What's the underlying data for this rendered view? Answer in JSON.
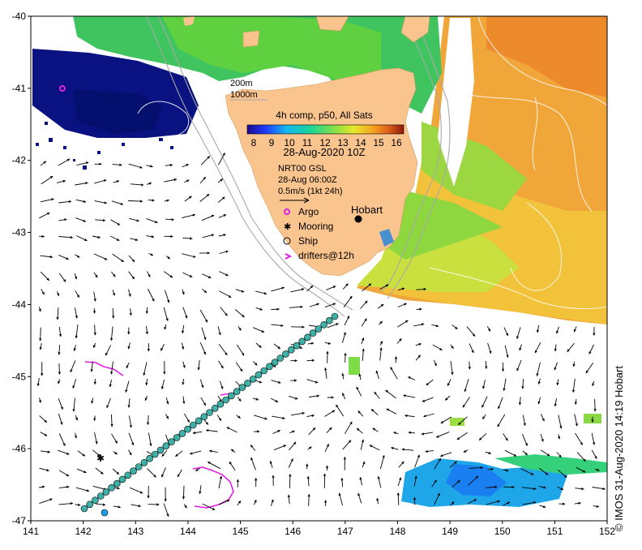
{
  "map": {
    "lon_range": [
      141,
      152
    ],
    "lat_range": [
      -47,
      -40
    ],
    "x_ticks": [
      "141",
      "142",
      "143",
      "144",
      "145",
      "146",
      "147",
      "148",
      "149",
      "150",
      "151",
      "152"
    ],
    "y_ticks": [
      "-40",
      "-41",
      "-42",
      "-43",
      "-44",
      "-45",
      "-46",
      "-47"
    ],
    "isobath_labels": [
      "200m",
      "1000m"
    ],
    "colorbar": {
      "title": "4h comp, p50, All Sats",
      "ticks": [
        "8",
        "9",
        "10",
        "11",
        "12",
        "13",
        "14",
        "15",
        "16"
      ],
      "date": "28-Aug-2020 10Z"
    },
    "currents": {
      "source": "NRT00 GSL",
      "time": "28-Aug 06:00Z",
      "scale": "0.5m/s (1kt 24h)"
    },
    "city": {
      "name": "Hobart",
      "lon": 147.3,
      "lat": -42.9
    },
    "legend": {
      "argo": "Argo",
      "mooring": "Mooring",
      "ship": "Ship",
      "drifters": "drifters@12h"
    },
    "credit": "© IMOS 31-Aug-2020 14:19 Hobart",
    "colors": {
      "land": "#f9c48e",
      "argo": "#e020e0",
      "drifter": "#e020e0",
      "track_fill": "#3fb0a6",
      "cold_patch": "#000a78"
    }
  }
}
